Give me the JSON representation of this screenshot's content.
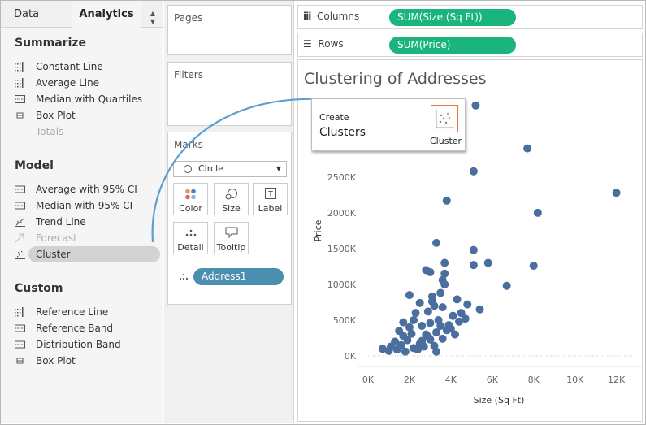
{
  "tabs": {
    "data": "Data",
    "analytics": "Analytics"
  },
  "analytics": {
    "summarize": {
      "title": "Summarize",
      "items": [
        "Constant Line",
        "Average Line",
        "Median with Quartiles",
        "Box Plot",
        "Totals"
      ]
    },
    "model": {
      "title": "Model",
      "items": [
        "Average with 95% CI",
        "Median with 95% CI",
        "Trend Line",
        "Forecast",
        "Cluster"
      ]
    },
    "custom": {
      "title": "Custom",
      "items": [
        "Reference Line",
        "Reference Band",
        "Distribution Band",
        "Box Plot"
      ]
    }
  },
  "cards": {
    "pages": "Pages",
    "filters": "Filters",
    "marks": {
      "title": "Marks",
      "mark_type": "Circle",
      "buttons": [
        "Color",
        "Size",
        "Label",
        "Detail",
        "Tooltip"
      ],
      "field": "Address1"
    }
  },
  "shelves": {
    "columns_label": "Columns",
    "columns_pill": "SUM(Size (Sq Ft))",
    "rows_label": "Rows",
    "rows_pill": "SUM(Price)"
  },
  "viz": {
    "title": "Clustering of Addresses"
  },
  "drag_tooltip": {
    "line1": "Create",
    "line2": "Clusters",
    "icon_label": "Cluster"
  },
  "colors": {
    "pill_green": "#1ab57c",
    "pill_blue": "#4a8fb0",
    "mark": "#4a6f9e",
    "accent_arrow": "#5b9fd4"
  },
  "chart_data": {
    "type": "scatter",
    "title": "Clustering of Addresses",
    "xlabel": "Size (Sq Ft)",
    "ylabel": "Price",
    "x_ticks": [
      "0K",
      "2K",
      "4K",
      "6K",
      "8K",
      "10K",
      "12K"
    ],
    "y_ticks": [
      "0K",
      "500K",
      "1000K",
      "1500K",
      "2000K",
      "2500K"
    ],
    "xlim": [
      0,
      12800
    ],
    "ylim": [
      0,
      3350000
    ],
    "points": [
      [
        5200,
        3500000
      ],
      [
        7700,
        2900000
      ],
      [
        5100,
        2580000
      ],
      [
        12000,
        2280000
      ],
      [
        3800,
        2170000
      ],
      [
        8200,
        2000000
      ],
      [
        3300,
        1580000
      ],
      [
        5100,
        1480000
      ],
      [
        3700,
        1300000
      ],
      [
        5800,
        1300000
      ],
      [
        5100,
        1270000
      ],
      [
        8000,
        1260000
      ],
      [
        2800,
        1200000
      ],
      [
        3000,
        1170000
      ],
      [
        3700,
        1150000
      ],
      [
        3600,
        1060000
      ],
      [
        3700,
        1000000
      ],
      [
        6700,
        980000
      ],
      [
        3500,
        880000
      ],
      [
        2000,
        850000
      ],
      [
        3100,
        830000
      ],
      [
        4300,
        790000
      ],
      [
        2500,
        740000
      ],
      [
        3100,
        760000
      ],
      [
        4800,
        720000
      ],
      [
        5400,
        650000
      ],
      [
        3600,
        680000
      ],
      [
        4500,
        600000
      ],
      [
        1700,
        470000
      ],
      [
        2200,
        500000
      ],
      [
        2600,
        420000
      ],
      [
        3000,
        460000
      ],
      [
        3400,
        500000
      ],
      [
        3900,
        430000
      ],
      [
        4400,
        480000
      ],
      [
        1500,
        350000
      ],
      [
        2100,
        310000
      ],
      [
        2800,
        300000
      ],
      [
        3300,
        330000
      ],
      [
        3800,
        360000
      ],
      [
        4200,
        300000
      ],
      [
        1300,
        200000
      ],
      [
        1900,
        220000
      ],
      [
        2500,
        170000
      ],
      [
        3000,
        230000
      ],
      [
        3600,
        240000
      ],
      [
        1100,
        130000
      ],
      [
        1600,
        150000
      ],
      [
        2200,
        110000
      ],
      [
        2700,
        130000
      ],
      [
        3200,
        140000
      ],
      [
        700,
        100000
      ],
      [
        1400,
        90000
      ],
      [
        1000,
        70000
      ],
      [
        1800,
        60000
      ],
      [
        2400,
        90000
      ],
      [
        3300,
        60000
      ],
      [
        2600,
        210000
      ],
      [
        2900,
        270000
      ],
      [
        1700,
        280000
      ],
      [
        2000,
        400000
      ],
      [
        3500,
        420000
      ],
      [
        4000,
        380000
      ],
      [
        4700,
        520000
      ],
      [
        2300,
        600000
      ],
      [
        2900,
        620000
      ],
      [
        3200,
        700000
      ],
      [
        4100,
        560000
      ]
    ]
  }
}
